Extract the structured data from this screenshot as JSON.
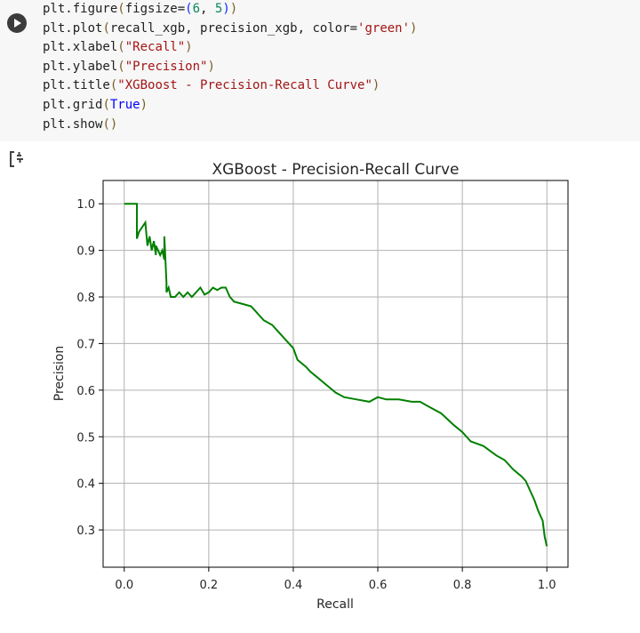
{
  "cell": {
    "code_lines": [
      "plt.figure(figsize=(6, 5))",
      "plt.plot(recall_xgb, precision_xgb, color='green')",
      "plt.xlabel(\"Recall\")",
      "plt.ylabel(\"Precision\")",
      "plt.title(\"XGBoost - Precision-Recall Curve\")",
      "plt.grid(True)",
      "plt.show()"
    ],
    "run_icon": "play-icon",
    "output_icon": "output-toggle-icon"
  },
  "chart_data": {
    "type": "line",
    "title": "XGBoost - Precision-Recall Curve",
    "xlabel": "Recall",
    "ylabel": "Precision",
    "xlim": [
      -0.05,
      1.05
    ],
    "ylim": [
      0.22,
      1.05
    ],
    "xticks": [
      "0.0",
      "0.2",
      "0.4",
      "0.6",
      "0.8",
      "1.0"
    ],
    "yticks": [
      "0.3",
      "0.4",
      "0.5",
      "0.6",
      "0.7",
      "0.8",
      "0.9",
      "1.0"
    ],
    "grid": true,
    "series": [
      {
        "color": "#008000",
        "x": [
          0.0,
          0.03,
          0.03,
          0.035,
          0.05,
          0.055,
          0.06,
          0.065,
          0.07,
          0.075,
          0.075,
          0.08,
          0.085,
          0.09,
          0.095,
          0.095,
          0.1,
          0.1,
          0.105,
          0.11,
          0.12,
          0.13,
          0.14,
          0.15,
          0.16,
          0.17,
          0.18,
          0.19,
          0.2,
          0.21,
          0.22,
          0.23,
          0.24,
          0.25,
          0.26,
          0.28,
          0.3,
          0.31,
          0.32,
          0.33,
          0.35,
          0.36,
          0.38,
          0.4,
          0.41,
          0.43,
          0.44,
          0.46,
          0.48,
          0.5,
          0.52,
          0.55,
          0.58,
          0.6,
          0.62,
          0.65,
          0.68,
          0.7,
          0.72,
          0.75,
          0.78,
          0.8,
          0.82,
          0.85,
          0.88,
          0.9,
          0.92,
          0.94,
          0.95,
          0.96,
          0.97,
          0.98,
          0.99,
          0.995,
          1.0
        ],
        "y": [
          1.0,
          1.0,
          0.925,
          0.94,
          0.96,
          0.91,
          0.93,
          0.9,
          0.92,
          0.89,
          0.91,
          0.9,
          0.89,
          0.9,
          0.88,
          0.93,
          0.83,
          0.81,
          0.82,
          0.8,
          0.8,
          0.81,
          0.8,
          0.81,
          0.8,
          0.81,
          0.82,
          0.805,
          0.81,
          0.82,
          0.815,
          0.82,
          0.82,
          0.8,
          0.79,
          0.785,
          0.78,
          0.77,
          0.76,
          0.75,
          0.74,
          0.73,
          0.71,
          0.69,
          0.665,
          0.65,
          0.64,
          0.625,
          0.61,
          0.595,
          0.585,
          0.58,
          0.575,
          0.585,
          0.58,
          0.58,
          0.575,
          0.575,
          0.565,
          0.55,
          0.525,
          0.51,
          0.49,
          0.48,
          0.46,
          0.45,
          0.43,
          0.415,
          0.405,
          0.385,
          0.365,
          0.34,
          0.32,
          0.285,
          0.265
        ]
      }
    ]
  }
}
